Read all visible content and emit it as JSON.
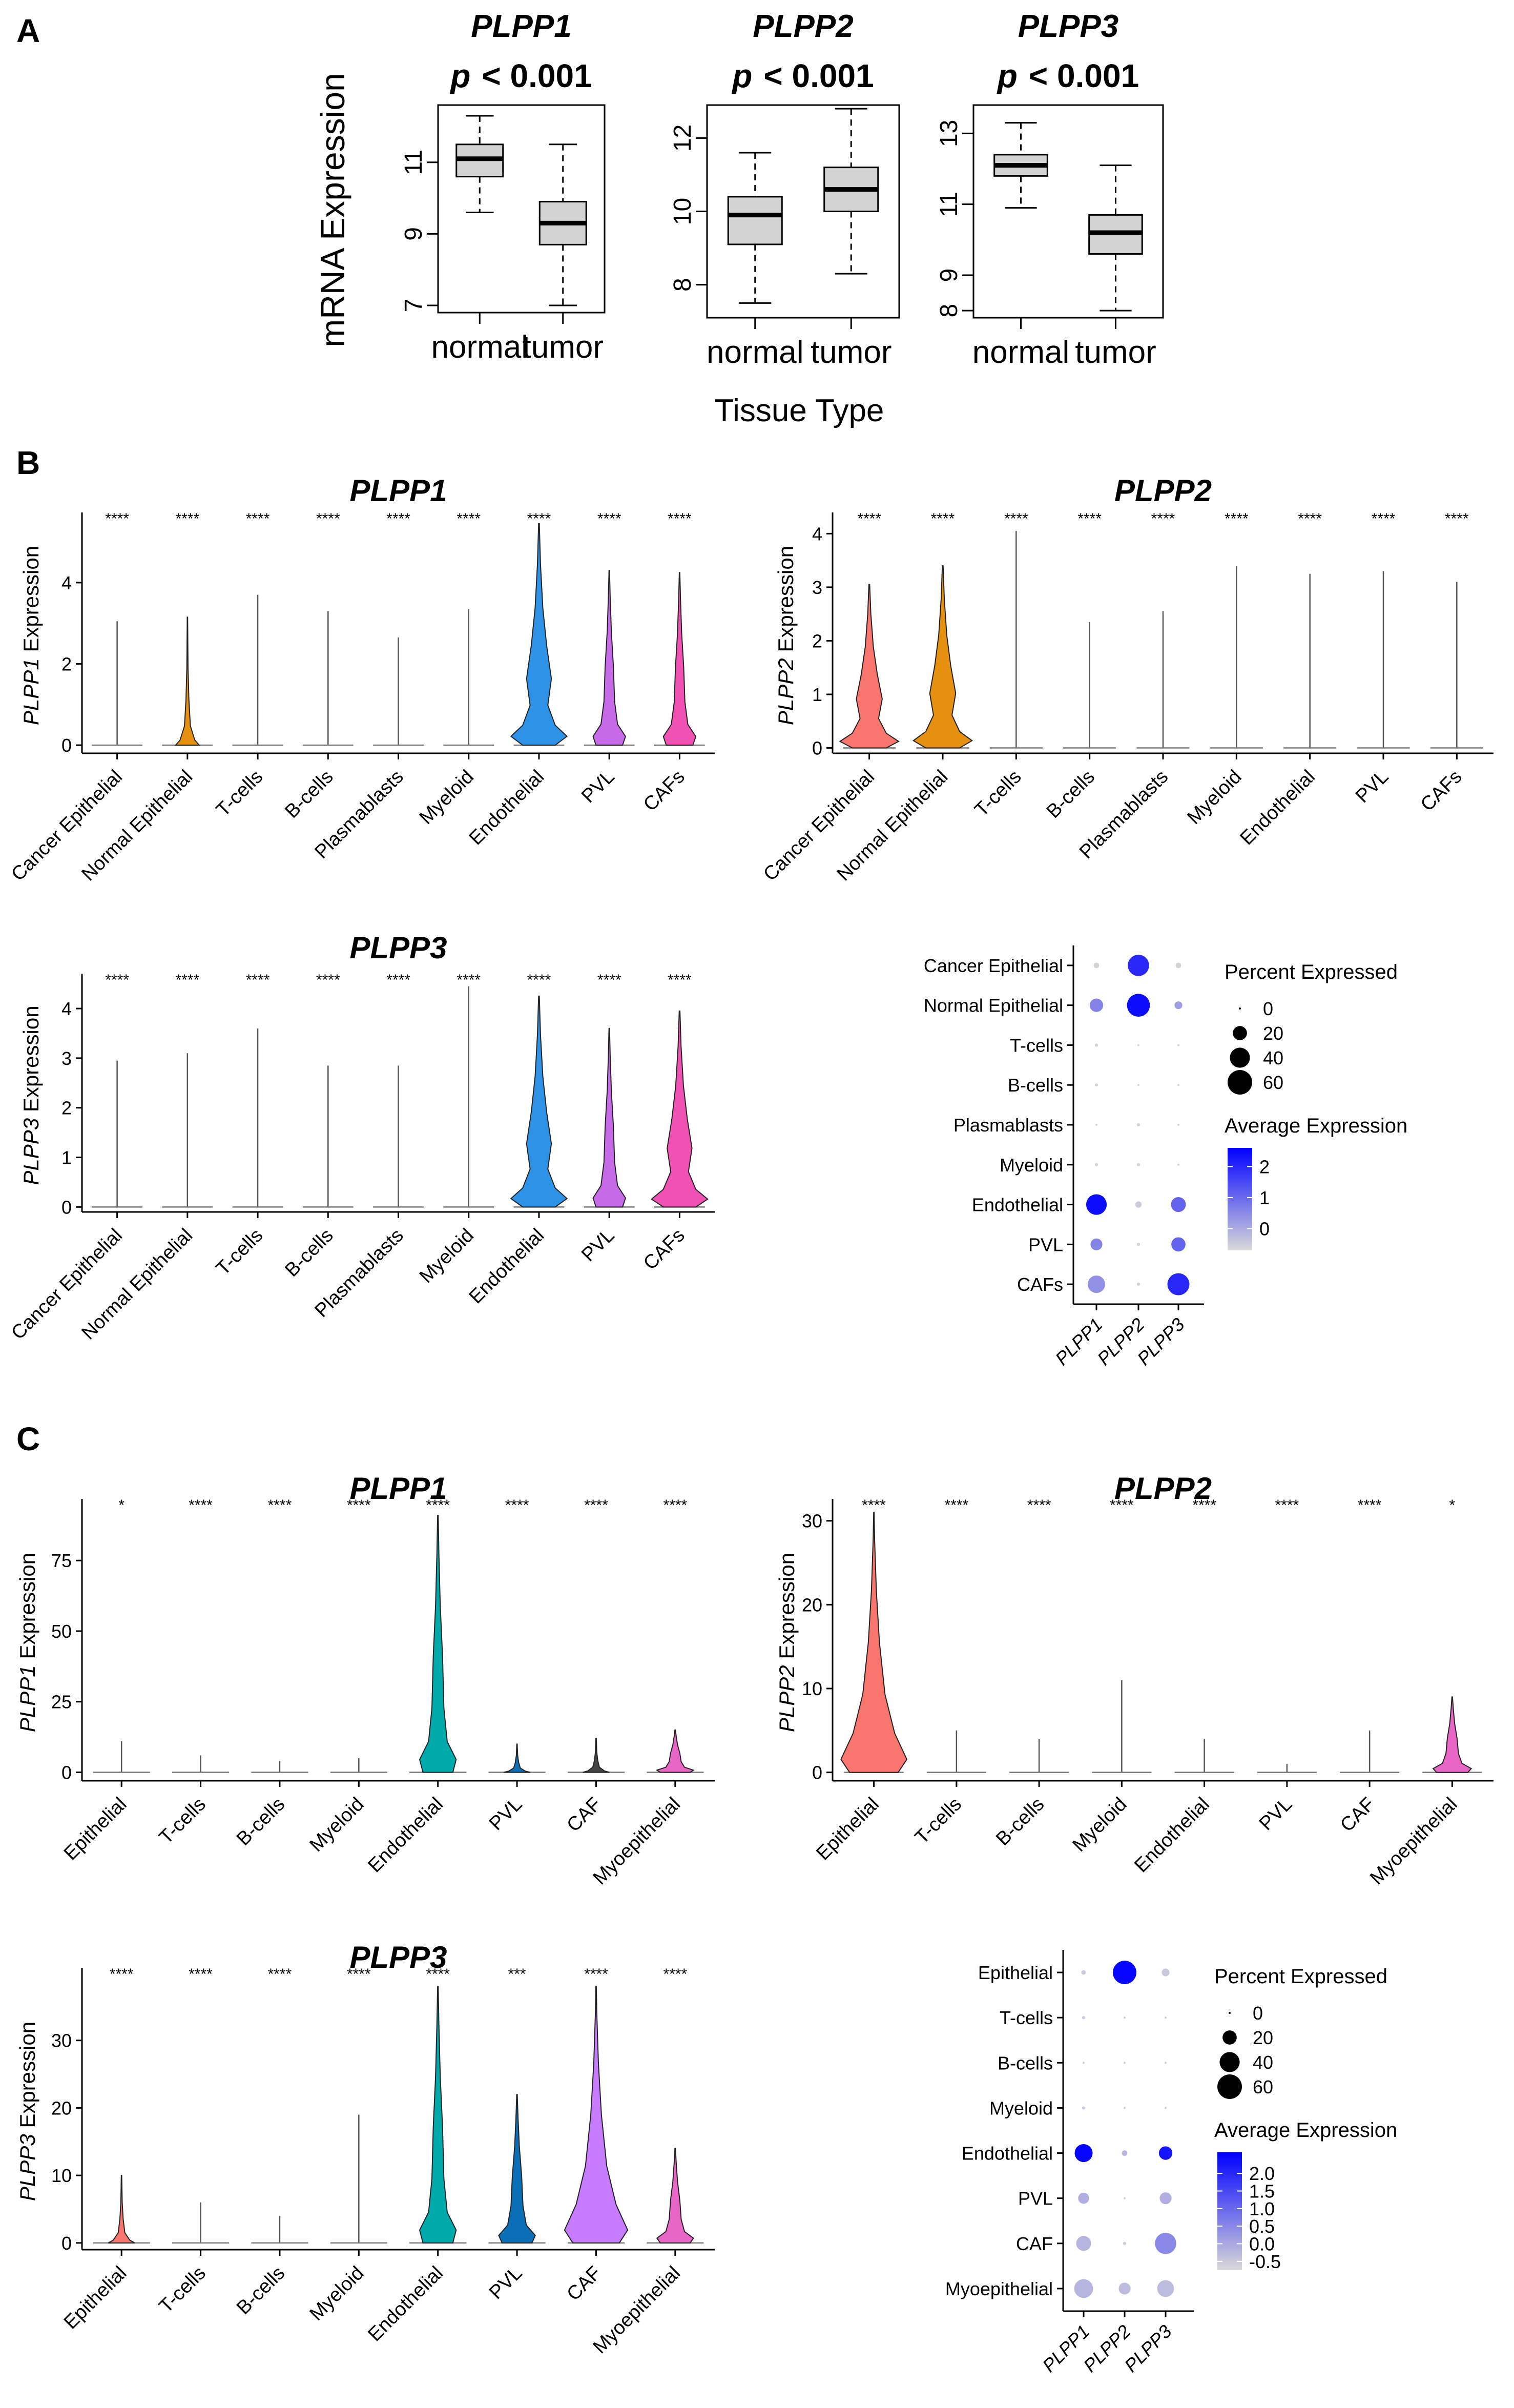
{
  "panel_labels": [
    "A",
    "B",
    "C"
  ],
  "panel_a": {
    "ylabel": "mRNA Expression",
    "xlabel": "Tissue Type",
    "box_fill": "#d3d3d3",
    "boxplots": [
      {
        "gene": "PLPP1",
        "pvalue_prefix": "p",
        "pvalue_text": "< 0.001",
        "categories": [
          "normal",
          "tumor"
        ],
        "yticks": [
          7,
          9,
          11
        ],
        "ylim": [
          6.8,
          12.6
        ],
        "boxes": [
          {
            "category": "normal",
            "min": 9.6,
            "q1": 10.6,
            "median": 11.1,
            "q3": 11.5,
            "max": 12.3
          },
          {
            "category": "tumor",
            "min": 7.0,
            "q1": 8.7,
            "median": 9.3,
            "q3": 9.9,
            "max": 11.5
          }
        ]
      },
      {
        "gene": "PLPP2",
        "pvalue_prefix": "p",
        "pvalue_text": "< 0.001",
        "categories": [
          "normal",
          "tumor"
        ],
        "yticks": [
          8,
          10,
          12
        ],
        "ylim": [
          7.1,
          12.9
        ],
        "boxes": [
          {
            "category": "normal",
            "min": 7.5,
            "q1": 9.1,
            "median": 9.9,
            "q3": 10.4,
            "max": 11.6
          },
          {
            "category": "tumor",
            "min": 8.3,
            "q1": 10.0,
            "median": 10.6,
            "q3": 11.2,
            "max": 12.8
          }
        ]
      },
      {
        "gene": "PLPP3",
        "pvalue_prefix": "p",
        "pvalue_text": "< 0.001",
        "categories": [
          "normal",
          "tumor"
        ],
        "yticks": [
          8,
          9,
          11,
          13
        ],
        "ylim": [
          7.8,
          13.8
        ],
        "boxes": [
          {
            "category": "normal",
            "min": 10.9,
            "q1": 11.8,
            "median": 12.1,
            "q3": 12.4,
            "max": 13.3
          },
          {
            "category": "tumor",
            "min": 8.0,
            "q1": 9.6,
            "median": 10.2,
            "q3": 10.7,
            "max": 12.1
          }
        ]
      }
    ]
  },
  "chart_data": [
    {
      "panel": "B",
      "gene": "PLPP1",
      "type": "violin",
      "title": "PLPP1",
      "ylabel_gene": "PLPP1",
      "ylabel_suffix": " Expression",
      "ylim": [
        -0.2,
        5.6
      ],
      "yticks": [
        0,
        2,
        4
      ],
      "categories": [
        "Cancer Epithelial",
        "Normal Epithelial",
        "T-cells",
        "B-cells",
        "Plasmablasts",
        "Myeloid",
        "Endothelial",
        "PVL",
        "CAFs"
      ],
      "significance": [
        "****",
        "****",
        "****",
        "****",
        "****",
        "****",
        "****",
        "****",
        "****"
      ],
      "max": [
        3.05,
        3.15,
        3.7,
        3.3,
        2.65,
        3.35,
        5.45,
        4.3,
        4.25
      ],
      "shape": [
        "none",
        "small",
        "none",
        "none",
        "none",
        "none",
        "bulge",
        "medium",
        "medium"
      ],
      "colors": [
        "#f8766d",
        "#e69012",
        "#9da600",
        "#39b600",
        "#00bf7d",
        "#00bfc4",
        "#2e93e6",
        "#c66ae8",
        "#f052b3"
      ]
    },
    {
      "panel": "B",
      "gene": "PLPP2",
      "type": "violin",
      "title": "PLPP2",
      "ylabel_gene": "PLPP2",
      "ylabel_suffix": " Expression",
      "ylim": [
        -0.1,
        4.3
      ],
      "yticks": [
        0,
        1,
        2,
        3,
        4
      ],
      "categories": [
        "Cancer Epithelial",
        "Normal Epithelial",
        "T-cells",
        "B-cells",
        "Plasmablasts",
        "Myeloid",
        "Endothelial",
        "PVL",
        "CAFs"
      ],
      "significance": [
        "****",
        "****",
        "****",
        "****",
        "****",
        "****",
        "****",
        "****",
        "****"
      ],
      "max": [
        3.05,
        3.4,
        4.05,
        2.35,
        2.55,
        3.4,
        3.25,
        3.3,
        3.1
      ],
      "shape": [
        "bulge",
        "bulge",
        "none",
        "none",
        "none",
        "none",
        "none",
        "none",
        "none"
      ],
      "colors": [
        "#f8766d",
        "#e69012",
        "#9da600",
        "#39b600",
        "#00bf7d",
        "#00bfc4",
        "#2e93e6",
        "#c66ae8",
        "#f052b3"
      ]
    },
    {
      "panel": "B",
      "gene": "PLPP3",
      "type": "violin",
      "title": "PLPP3",
      "ylabel_gene": "PLPP3",
      "ylabel_suffix": " Expression",
      "ylim": [
        -0.1,
        4.6
      ],
      "yticks": [
        0,
        1,
        2,
        3,
        4
      ],
      "categories": [
        "Cancer Epithelial",
        "Normal Epithelial",
        "T-cells",
        "B-cells",
        "Plasmablasts",
        "Myeloid",
        "Endothelial",
        "PVL",
        "CAFs"
      ],
      "significance": [
        "****",
        "****",
        "****",
        "****",
        "****",
        "****",
        "****",
        "****",
        "****"
      ],
      "max": [
        2.95,
        3.1,
        3.6,
        2.85,
        2.85,
        4.45,
        4.25,
        3.6,
        3.95
      ],
      "shape": [
        "none",
        "none",
        "none",
        "none",
        "none",
        "none",
        "bulge",
        "medium",
        "bulge"
      ],
      "colors": [
        "#f8766d",
        "#e69012",
        "#9da600",
        "#39b600",
        "#00bf7d",
        "#00bfc4",
        "#2e93e6",
        "#c66ae8",
        "#f052b3"
      ]
    },
    {
      "panel": "B",
      "type": "dotplot",
      "genes": [
        "PLPP1",
        "PLPP2",
        "PLPP3"
      ],
      "celltypes": [
        "Cancer Epithelial",
        "Normal Epithelial",
        "T-cells",
        "B-cells",
        "Plasmablasts",
        "Myeloid",
        "Endothelial",
        "PVL",
        "CAFs"
      ],
      "percent": [
        [
          3,
          45,
          3
        ],
        [
          18,
          52,
          6
        ],
        [
          1,
          0,
          0
        ],
        [
          1,
          0,
          0
        ],
        [
          0,
          1,
          0
        ],
        [
          1,
          1,
          0
        ],
        [
          42,
          4,
          22
        ],
        [
          14,
          1,
          20
        ],
        [
          30,
          1,
          48
        ]
      ],
      "avg": [
        [
          -0.6,
          2.0,
          -0.6
        ],
        [
          0.6,
          2.4,
          0.2
        ],
        [
          -0.6,
          -0.6,
          -0.6
        ],
        [
          -0.6,
          -0.6,
          -0.6
        ],
        [
          -0.6,
          -0.6,
          -0.6
        ],
        [
          -0.6,
          -0.6,
          -0.6
        ],
        [
          2.4,
          -0.5,
          1.1
        ],
        [
          0.6,
          -0.6,
          1.1
        ],
        [
          0.4,
          -0.6,
          2.0
        ]
      ],
      "size_legend_title": "Percent Expressed",
      "size_legend_values": [
        0,
        20,
        40,
        60
      ],
      "color_legend_title": "Average Expression",
      "color_legend_ticks": [
        2,
        1,
        0
      ],
      "color_range": [
        -0.7,
        2.6
      ],
      "color_low": "#d9d9d9",
      "color_high": "#0000ff"
    },
    {
      "panel": "C",
      "gene": "PLPP1",
      "type": "violin",
      "title": "PLPP1",
      "ylabel_gene": "PLPP1",
      "ylabel_suffix": " Expression",
      "ylim": [
        -3,
        95
      ],
      "yticks": [
        0,
        25,
        50,
        75
      ],
      "categories": [
        "Epithelial",
        "T-cells",
        "B-cells",
        "Myeloid",
        "Endothelial",
        "PVL",
        "CAF",
        "Myoepithelial"
      ],
      "significance": [
        "*",
        "****",
        "****",
        "****",
        "****",
        "****",
        "****",
        "****"
      ],
      "max": [
        11,
        6,
        4,
        5,
        91,
        10,
        12,
        15
      ],
      "shape": [
        "none",
        "none",
        "none",
        "none",
        "medium",
        "small",
        "small",
        "medium"
      ],
      "colors": [
        "#f8766d",
        "#cd9600",
        "#7cae00",
        "#00be67",
        "#00a9aa",
        "#0b6fb8",
        "#444444",
        "#e766c6"
      ]
    },
    {
      "panel": "C",
      "gene": "PLPP2",
      "type": "violin",
      "title": "PLPP2",
      "ylabel_gene": "PLPP2",
      "ylabel_suffix": " Expression",
      "ylim": [
        -1,
        32
      ],
      "yticks": [
        0,
        10,
        20,
        30
      ],
      "categories": [
        "Epithelial",
        "T-cells",
        "B-cells",
        "Myeloid",
        "Endothelial",
        "PVL",
        "CAF",
        "Myoepithelial"
      ],
      "significance": [
        "****",
        "****",
        "****",
        "****",
        "****",
        "****",
        "****",
        "*"
      ],
      "max": [
        31,
        5,
        4,
        11,
        4,
        1,
        5,
        9
      ],
      "shape": [
        "tall",
        "none",
        "none",
        "none",
        "none",
        "none",
        "none",
        "medium"
      ],
      "colors": [
        "#f8766d",
        "#cd9600",
        "#7cae00",
        "#00be67",
        "#00a9aa",
        "#0b6fb8",
        "#444444",
        "#e766c6"
      ]
    },
    {
      "panel": "C",
      "gene": "PLPP3",
      "type": "violin",
      "title": "PLPP3",
      "ylabel_gene": "PLPP3",
      "ylabel_suffix": " Expression",
      "ylim": [
        -1,
        40
      ],
      "yticks": [
        0,
        10,
        20,
        30
      ],
      "categories": [
        "Epithelial",
        "T-cells",
        "B-cells",
        "Myeloid",
        "Endothelial",
        "PVL",
        "CAF",
        "Myoepithelial"
      ],
      "significance": [
        "****",
        "****",
        "****",
        "****",
        "****",
        "***",
        "****",
        "****"
      ],
      "max": [
        10,
        6,
        4,
        19,
        38,
        22,
        38,
        14
      ],
      "shape": [
        "small",
        "none",
        "none",
        "none",
        "medium",
        "medium",
        "tall",
        "medium"
      ],
      "colors": [
        "#f8766d",
        "#cd9600",
        "#7cae00",
        "#00be67",
        "#00a9aa",
        "#0b6fb8",
        "#c77cff",
        "#e766c6"
      ]
    },
    {
      "panel": "C",
      "type": "dotplot",
      "genes": [
        "PLPP1",
        "PLPP2",
        "PLPP3"
      ],
      "celltypes": [
        "Epithelial",
        "T-cells",
        "B-cells",
        "Myeloid",
        "Endothelial",
        "PVL",
        "CAF",
        "Myoepithelial"
      ],
      "percent": [
        [
          2,
          55,
          6
        ],
        [
          1,
          0,
          0
        ],
        [
          0,
          0,
          0
        ],
        [
          1,
          0,
          0
        ],
        [
          32,
          3,
          18
        ],
        [
          12,
          0,
          14
        ],
        [
          22,
          1,
          45
        ],
        [
          35,
          14,
          28
        ]
      ],
      "avg": [
        [
          -0.5,
          2.5,
          -0.5
        ],
        [
          -0.6,
          -0.6,
          -0.6
        ],
        [
          -0.6,
          -0.6,
          -0.6
        ],
        [
          -0.6,
          -0.6,
          -0.6
        ],
        [
          2.5,
          -0.2,
          2.3
        ],
        [
          -0.1,
          -0.6,
          -0.1
        ],
        [
          -0.2,
          -0.6,
          0.5
        ],
        [
          -0.2,
          -0.3,
          -0.3
        ]
      ],
      "size_legend_title": "Percent Expressed",
      "size_legend_values": [
        0,
        20,
        40,
        60
      ],
      "color_legend_title": "Average Expression",
      "color_legend_ticks": [
        "2.0",
        "1.5",
        "1.0",
        "0.5",
        "0.0",
        "-0.5"
      ],
      "color_tick_values": [
        2.0,
        1.5,
        1.0,
        0.5,
        0.0,
        -0.5
      ],
      "color_range": [
        -0.75,
        2.6
      ],
      "color_low": "#d9d9d9",
      "color_high": "#0000ff"
    }
  ]
}
